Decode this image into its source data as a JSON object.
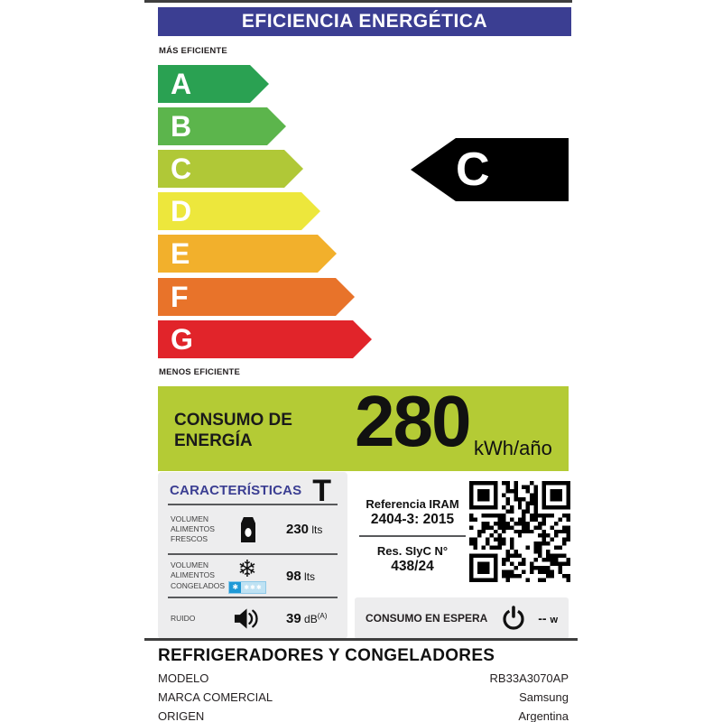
{
  "header": {
    "title": "EFICIENCIA ENERGÉTICA"
  },
  "scale": {
    "more_efficient": "MÁS EFICIENTE",
    "less_efficient": "MENOS EFICIENTE",
    "grades": [
      {
        "letter": "A",
        "color": "#2aa152"
      },
      {
        "letter": "B",
        "color": "#5cb54c"
      },
      {
        "letter": "C",
        "color": "#b0c837"
      },
      {
        "letter": "D",
        "color": "#ede73c"
      },
      {
        "letter": "E",
        "color": "#f2b02c"
      },
      {
        "letter": "F",
        "color": "#e8732a"
      },
      {
        "letter": "G",
        "color": "#e1242a"
      }
    ],
    "rating_letter": "C",
    "rating_color": "#000000"
  },
  "consumption": {
    "label": "CONSUMO DE ENERGÍA",
    "value": "280",
    "unit": "kWh/año",
    "box_color": "#b4cb35"
  },
  "features": {
    "title": "CARACTERÍSTICAS",
    "climate_class": "T",
    "rows": [
      {
        "label": "VOLUMEN ALIMENTOS FRESCOS",
        "icon": "milk-carton-icon",
        "value": "230",
        "unit": "lts"
      },
      {
        "label": "VOLUMEN ALIMENTOS CONGELADOS",
        "icon": "snowflake-icon",
        "value": "98",
        "unit": "lts"
      },
      {
        "label": "RUIDO",
        "icon": "speaker-icon",
        "value": "39",
        "unit": "dB",
        "unit_superscript": "(A)"
      }
    ],
    "freezer_badge": {
      "main_star": "✱",
      "extra_stars": "✱✱✱"
    }
  },
  "reference": {
    "title": "Referencia IRAM",
    "standard": "2404-3: 2015",
    "resolution_label": "Res. SIyC N°",
    "resolution_value": "438/24"
  },
  "standby": {
    "label": "CONSUMO EN ESPERA",
    "icon": "power-icon",
    "value": "--",
    "unit": "w"
  },
  "footer": {
    "category": "REFRIGERADORES Y CONGELADORES",
    "rows": [
      {
        "label": "MODELO",
        "value": "RB33A3070AP"
      },
      {
        "label": "MARCA COMERCIAL",
        "value": "Samsung"
      },
      {
        "label": "ORIGEN",
        "value": "Argentina"
      }
    ]
  },
  "colors": {
    "header_bg": "#3b3e92",
    "accent_green": "#b4cb35",
    "panel_gray": "#ededee",
    "divider_dark": "#58595b",
    "line_dark": "#3f3f3f"
  }
}
